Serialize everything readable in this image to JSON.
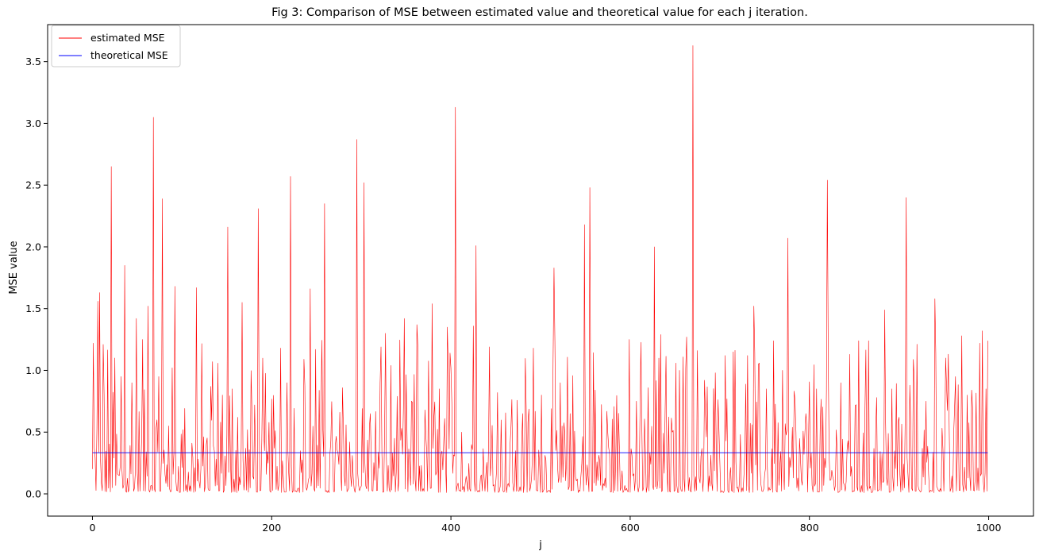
{
  "chart_data": {
    "type": "line",
    "title": "Fig 3: Comparison of MSE between estimated value and theoretical value for each j iteration.",
    "xlabel": "j",
    "ylabel": "MSE value",
    "xlim": [
      -50,
      1050
    ],
    "ylim": [
      -0.18,
      3.8
    ],
    "xticks": [
      0,
      200,
      400,
      600,
      800,
      1000
    ],
    "xtick_labels": [
      "0",
      "200",
      "400",
      "600",
      "800",
      "1000"
    ],
    "yticks": [
      0.0,
      0.5,
      1.0,
      1.5,
      2.0,
      2.5,
      3.0,
      3.5
    ],
    "ytick_labels": [
      "0.0",
      "0.5",
      "1.0",
      "1.5",
      "2.0",
      "2.5",
      "3.0",
      "3.5"
    ],
    "grid": false,
    "legend_position": "top-left",
    "series": [
      {
        "name": "estimated MSE",
        "color": "#ff0000",
        "kind": "noisy",
        "n_points": 1000,
        "x_start": 0,
        "x_end": 999,
        "baseline_values": [
          0.02,
          0.05,
          0.12,
          0.25,
          0.4,
          0.6,
          0.85
        ],
        "peaks": [
          [
            1,
            1.22
          ],
          [
            6,
            1.56
          ],
          [
            8,
            1.63
          ],
          [
            12,
            1.21
          ],
          [
            21,
            2.65
          ],
          [
            25,
            1.1
          ],
          [
            32,
            0.95
          ],
          [
            36,
            1.85
          ],
          [
            44,
            0.9
          ],
          [
            49,
            1.42
          ],
          [
            56,
            1.25
          ],
          [
            62,
            1.52
          ],
          [
            68,
            3.05
          ],
          [
            74,
            0.95
          ],
          [
            78,
            2.39
          ],
          [
            85,
            0.55
          ],
          [
            92,
            1.68
          ],
          [
            101,
            0.52
          ],
          [
            116,
            1.67
          ],
          [
            127,
            0.4
          ],
          [
            132,
            0.87
          ],
          [
            134,
            1.07
          ],
          [
            145,
            0.8
          ],
          [
            151,
            2.16
          ],
          [
            156,
            0.85
          ],
          [
            162,
            0.62
          ],
          [
            167,
            1.55
          ],
          [
            178,
            0.66
          ],
          [
            181,
            0.72
          ],
          [
            185,
            2.31
          ],
          [
            192,
            0.35
          ],
          [
            210,
            1.18
          ],
          [
            217,
            0.9
          ],
          [
            221,
            2.57
          ],
          [
            237,
            0.88
          ],
          [
            243,
            1.66
          ],
          [
            249,
            1.17
          ],
          [
            259,
            2.35
          ],
          [
            268,
            0.32
          ],
          [
            276,
            0.66
          ],
          [
            287,
            0.42
          ],
          [
            295,
            2.87
          ],
          [
            303,
            2.52
          ],
          [
            310,
            0.65
          ],
          [
            322,
            1.19
          ],
          [
            327,
            1.3
          ],
          [
            337,
            0.45
          ],
          [
            348,
            1.42
          ],
          [
            356,
            0.75
          ],
          [
            362,
            1.37
          ],
          [
            371,
            0.68
          ],
          [
            379,
            1.54
          ],
          [
            387,
            0.85
          ],
          [
            396,
            1.35
          ],
          [
            400,
            1.02
          ],
          [
            405,
            3.13
          ],
          [
            412,
            0.5
          ],
          [
            425,
            1.36
          ],
          [
            428,
            2.01
          ],
          [
            443,
            1.19
          ],
          [
            452,
            0.82
          ],
          [
            466,
            0.4
          ],
          [
            480,
            0.65
          ],
          [
            492,
            1.18
          ],
          [
            501,
            0.8
          ],
          [
            515,
            1.83
          ],
          [
            522,
            0.9
          ],
          [
            533,
            0.65
          ],
          [
            549,
            2.18
          ],
          [
            555,
            2.48
          ],
          [
            561,
            0.84
          ],
          [
            575,
            0.5
          ],
          [
            599,
            1.25
          ],
          [
            607,
            0.75
          ],
          [
            620,
            0.86
          ],
          [
            627,
            2.0
          ],
          [
            634,
            1.29
          ],
          [
            647,
            0.5
          ],
          [
            655,
            1.0
          ],
          [
            663,
            1.27
          ],
          [
            670,
            3.63
          ],
          [
            675,
            1.16
          ],
          [
            683,
            0.92
          ],
          [
            695,
            0.98
          ],
          [
            706,
            1.12
          ],
          [
            715,
            1.15
          ],
          [
            723,
            0.48
          ],
          [
            731,
            1.12
          ],
          [
            738,
            1.52
          ],
          [
            752,
            0.85
          ],
          [
            760,
            1.24
          ],
          [
            770,
            1.0
          ],
          [
            776,
            2.07
          ],
          [
            784,
            0.75
          ],
          [
            796,
            0.65
          ],
          [
            808,
            0.85
          ],
          [
            820,
            2.54
          ],
          [
            835,
            0.9
          ],
          [
            845,
            1.13
          ],
          [
            855,
            1.24
          ],
          [
            866,
            1.24
          ],
          [
            875,
            0.78
          ],
          [
            884,
            1.49
          ],
          [
            892,
            0.85
          ],
          [
            900,
            0.62
          ],
          [
            908,
            2.4
          ],
          [
            917,
            0.9
          ],
          [
            930,
            0.75
          ],
          [
            940,
            1.58
          ],
          [
            952,
            1.1
          ],
          [
            962,
            0.7
          ],
          [
            970,
            1.28
          ],
          [
            976,
            0.8
          ],
          [
            982,
            0.7
          ],
          [
            990,
            1.22
          ],
          [
            993,
            1.32
          ],
          [
            997,
            0.85
          ],
          [
            999,
            1.24
          ]
        ]
      },
      {
        "name": "theoretical MSE",
        "color": "#0000ff",
        "kind": "constant",
        "x": [
          0,
          999
        ],
        "values": [
          0.333,
          0.333
        ]
      }
    ]
  }
}
